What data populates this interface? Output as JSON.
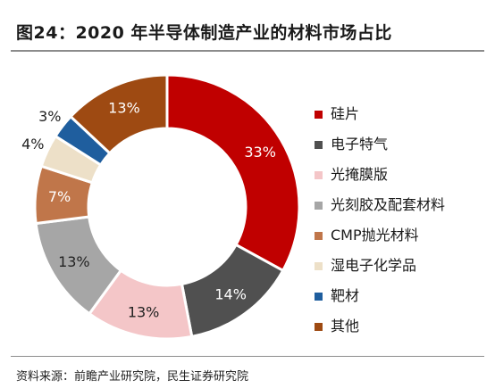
{
  "title": "图24：2020 年半导体制造产业的材料市场占比",
  "source": "资料来源：前瞻产业研究院，民生证券研究院",
  "chart_data": {
    "type": "pie",
    "donut": true,
    "categories": [
      "硅片",
      "电子特气",
      "光掩膜版",
      "光刻胶及配套材料",
      "CMP抛光材料",
      "湿电子化学品",
      "靶材",
      "其他"
    ],
    "values": [
      33,
      14,
      13,
      13,
      7,
      4,
      3,
      13
    ],
    "labels": [
      "33%",
      "14%",
      "13%",
      "13%",
      "7%",
      "4%",
      "3%",
      "13%"
    ],
    "colors": [
      "#c00000",
      "#505050",
      "#f4c6c8",
      "#a6a6a6",
      "#c0764a",
      "#ede0c8",
      "#1f5e9e",
      "#9e4a12"
    ],
    "label_colors": [
      "#ffffff",
      "#ffffff",
      "#222222",
      "#222222",
      "#ffffff",
      "#222222",
      "#222222",
      "#ffffff"
    ],
    "legend_position": "right"
  }
}
